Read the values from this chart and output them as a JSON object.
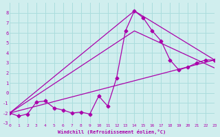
{
  "bg_color": "#d0eeee",
  "grid_color": "#aadddd",
  "line_color": "#aa00aa",
  "marker_color": "#aa00aa",
  "xlabel": "Windchill (Refroidissement éolien,°C)",
  "xlim": [
    0,
    23
  ],
  "ylim": [
    -3,
    9
  ],
  "yticks": [
    -3,
    -2,
    -1,
    0,
    1,
    2,
    3,
    4,
    5,
    6,
    7,
    8
  ],
  "ytick_labels": [
    "-3",
    "-2",
    "-1",
    "0",
    "1",
    "2",
    "3",
    "4",
    "5",
    "6",
    "7",
    "8"
  ],
  "xticks": [
    0,
    1,
    2,
    3,
    4,
    5,
    6,
    7,
    8,
    9,
    10,
    11,
    12,
    13,
    14,
    15,
    16,
    17,
    18,
    19,
    20,
    21,
    22,
    23
  ],
  "xtick_labels": [
    "0",
    "1",
    "2",
    "3",
    "4",
    "5",
    "6",
    "7",
    "8",
    "9",
    "10",
    "11",
    "12",
    "13",
    "14",
    "15",
    "16",
    "17",
    "18",
    "19",
    "20",
    "21",
    "22",
    "23"
  ],
  "series1_x": [
    0,
    1,
    2,
    3,
    4,
    5,
    6,
    7,
    8,
    9,
    10,
    11,
    12,
    13,
    14,
    15,
    16,
    17,
    18,
    19,
    20,
    21,
    22,
    23
  ],
  "series1_y": [
    -2.0,
    -2.3,
    -2.1,
    -0.9,
    -0.8,
    -1.5,
    -1.7,
    -2.0,
    -1.9,
    -2.1,
    -0.3,
    -1.3,
    1.5,
    6.2,
    8.2,
    7.5,
    6.2,
    5.2,
    3.3,
    2.3,
    2.6,
    3.0,
    3.3,
    3.3
  ],
  "series2_x": [
    0,
    23
  ],
  "series2_y": [
    -2.0,
    3.3
  ],
  "series3_x": [
    0,
    14,
    23
  ],
  "series3_y": [
    -2.0,
    8.2,
    3.3
  ],
  "series4_x": [
    0,
    14,
    23
  ],
  "series4_y": [
    -2.0,
    6.2,
    2.5
  ]
}
